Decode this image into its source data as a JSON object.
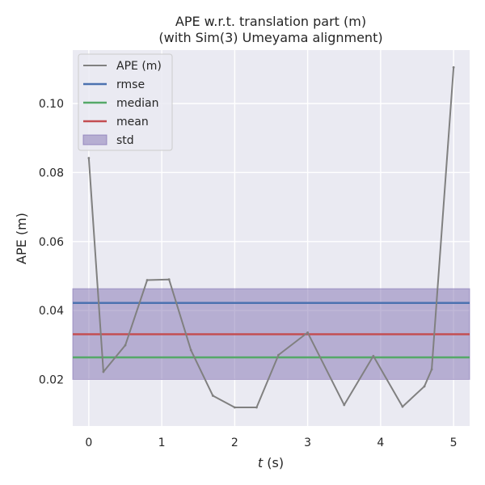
{
  "chart_data": {
    "type": "line",
    "title": "APE w.r.t. translation part (m)",
    "subtitle": "(with Sim(3) Umeyama alignment)",
    "xlabel_italic": "t",
    "xlabel_unit": " (s)",
    "ylabel": "APE (m)",
    "xlim": [
      -0.22,
      5.22
    ],
    "ylim": [
      0.0065,
      0.1155
    ],
    "xticks": [
      0,
      1,
      2,
      3,
      4,
      5
    ],
    "yticks": [
      0.02,
      0.04,
      0.06,
      0.08,
      0.1
    ],
    "ytick_labels": [
      "0.02",
      "0.04",
      "0.06",
      "0.08",
      "0.10"
    ],
    "grid": true,
    "legend_position": "top-left",
    "series": [
      {
        "name": "APE (m)",
        "color": "#808080",
        "x": [
          0.0,
          0.2,
          0.5,
          0.8,
          1.1,
          1.4,
          1.7,
          2.0,
          2.3,
          2.6,
          3.0,
          3.5,
          3.9,
          4.3,
          4.6,
          4.7,
          5.0
        ],
        "y": [
          0.0842,
          0.0222,
          0.0299,
          0.0488,
          0.049,
          0.0285,
          0.0153,
          0.0119,
          0.0119,
          0.0271,
          0.0336,
          0.0126,
          0.0268,
          0.0121,
          0.018,
          0.0229,
          0.1105
        ]
      }
    ],
    "statistics": [
      {
        "name": "rmse",
        "value": 0.0422,
        "color": "#4c72b0"
      },
      {
        "name": "median",
        "value": 0.0264,
        "color": "#55a868"
      },
      {
        "name": "mean",
        "value": 0.0331,
        "color": "#c44e52"
      }
    ],
    "std_band": {
      "name": "std",
      "lower": 0.02,
      "upper": 0.0463,
      "color": "#8172b2"
    }
  }
}
